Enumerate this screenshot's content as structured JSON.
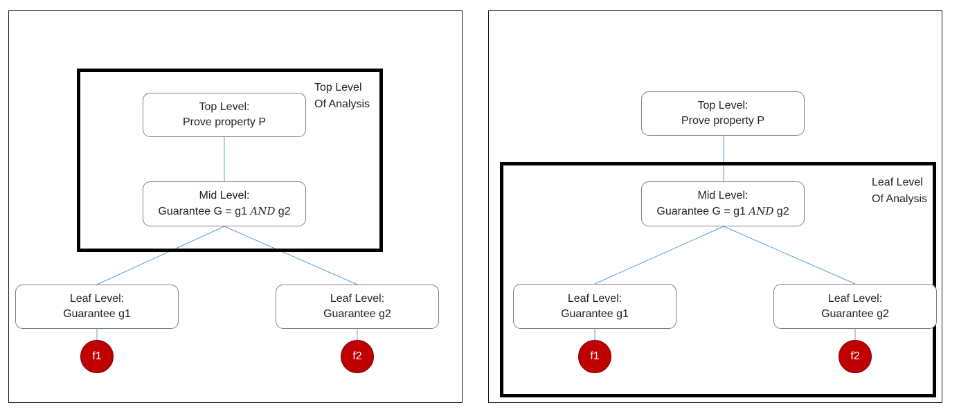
{
  "panels": [
    {
      "analysis_label_line1": "Top Level",
      "analysis_label_line2": "Of Analysis",
      "top": {
        "line1": "Top Level:",
        "line2": "Prove property P"
      },
      "mid": {
        "line1": "Mid Level:",
        "line2_pre": "Guarantee G = g1 ",
        "line2_op": "AND",
        "line2_post": " g2"
      },
      "leaf1": {
        "line1": "Leaf Level:",
        "line2": "Guarantee g1"
      },
      "leaf2": {
        "line1": "Leaf Level:",
        "line2": "Guarantee g2"
      },
      "fault1": "f1",
      "fault2": "f2"
    },
    {
      "analysis_label_line1": "Leaf Level",
      "analysis_label_line2": "Of Analysis",
      "top": {
        "line1": "Top Level:",
        "line2": "Prove property P"
      },
      "mid": {
        "line1": "Mid Level:",
        "line2_pre": "Guarantee G = g1 ",
        "line2_op": "AND",
        "line2_post": " g2"
      },
      "leaf1": {
        "line1": "Leaf Level:",
        "line2": "Guarantee g1"
      },
      "leaf2": {
        "line1": "Leaf Level:",
        "line2": "Guarantee g2"
      },
      "fault1": "f1",
      "fault2": "f2"
    }
  ],
  "colors": {
    "edge": "#5b9bd5",
    "fault_fill": "#c00000",
    "frame": "#000000",
    "node_border": "#7f7f7f"
  }
}
